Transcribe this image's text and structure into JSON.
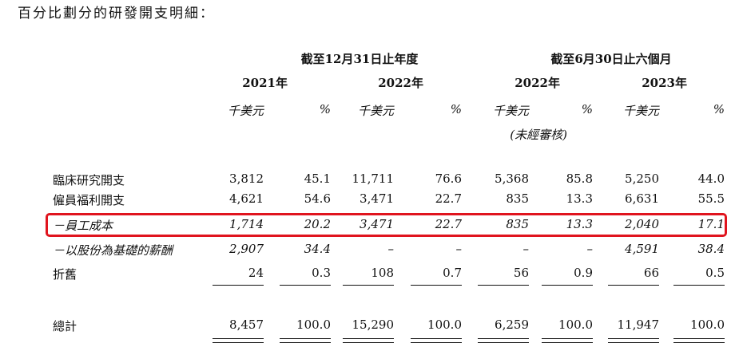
{
  "intro_text": "百分比劃分的研發開支明細：",
  "groups": [
    {
      "label": "截至12月31日止年度"
    },
    {
      "label": "截至6月30日止六個月"
    }
  ],
  "years": [
    "2021年",
    "2022年",
    "2022年",
    "2023年"
  ],
  "units": [
    "千美元",
    "%",
    "千美元",
    "%",
    "千美元",
    "%",
    "千美元",
    "%"
  ],
  "unaudited_note": "(未經審核)",
  "rows": [
    {
      "label": "臨床研究開支",
      "values": [
        "3,812",
        "45.1",
        "11,711",
        "76.6",
        "5,368",
        "85.8",
        "5,250",
        "44.0"
      ],
      "italic": false
    },
    {
      "label": "僱員福利開支",
      "values": [
        "4,621",
        "54.6",
        "3,471",
        "22.7",
        "835",
        "13.3",
        "6,631",
        "55.5"
      ],
      "italic": false
    },
    {
      "label": "－員工成本",
      "values": [
        "1,714",
        "20.2",
        "3,471",
        "22.7",
        "835",
        "13.3",
        "2,040",
        "17.1"
      ],
      "italic": true
    },
    {
      "label": "－以股份為基礎的薪酬",
      "values": [
        "2,907",
        "34.4",
        "–",
        "–",
        "–",
        "–",
        "4,591",
        "38.4"
      ],
      "italic": true
    },
    {
      "label": "折舊",
      "values": [
        "24",
        "0.3",
        "108",
        "0.7",
        "56",
        "0.9",
        "66",
        "0.5"
      ],
      "italic": false
    }
  ],
  "total": {
    "label": "總計",
    "values": [
      "8,457",
      "100.0",
      "15,290",
      "100.0",
      "6,259",
      "100.0",
      "11,947",
      "100.0"
    ]
  },
  "highlight_color": "#e0141e"
}
